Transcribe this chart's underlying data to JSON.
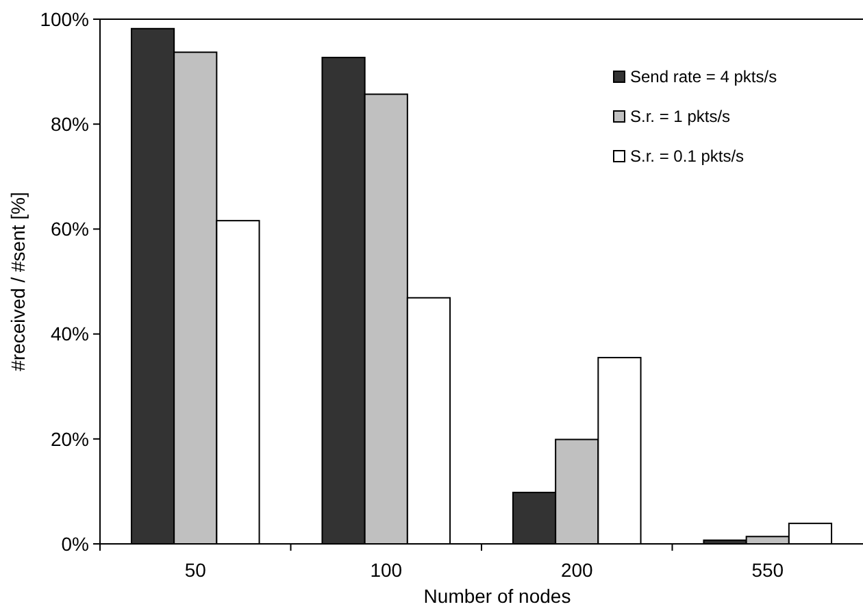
{
  "chart_data": {
    "type": "bar",
    "xlabel": "Number of nodes",
    "ylabel": "#received / #sent [%]",
    "categories": [
      "50",
      "100",
      "200",
      "550"
    ],
    "series": [
      {
        "name": "Send rate = 4 pkts/s",
        "color": "#333333",
        "values": [
          98.2,
          92.7,
          9.8,
          0.7
        ]
      },
      {
        "name": "S.r. = 1 pkts/s",
        "color": "#c0c0c0",
        "values": [
          93.7,
          85.7,
          19.9,
          1.4
        ]
      },
      {
        "name": "S.r. = 0.1 pkts/s",
        "color": "#ffffff",
        "values": [
          61.6,
          46.9,
          35.5,
          3.9
        ]
      }
    ],
    "ylim": [
      0,
      100
    ],
    "yticks": [
      {
        "value": 0,
        "label": "0%"
      },
      {
        "value": 20,
        "label": "20%"
      },
      {
        "value": 40,
        "label": "40%"
      },
      {
        "value": 60,
        "label": "60%"
      },
      {
        "value": 80,
        "label": "80%"
      },
      {
        "value": 100,
        "label": "100%"
      }
    ],
    "grid": false,
    "legend": "top right"
  }
}
